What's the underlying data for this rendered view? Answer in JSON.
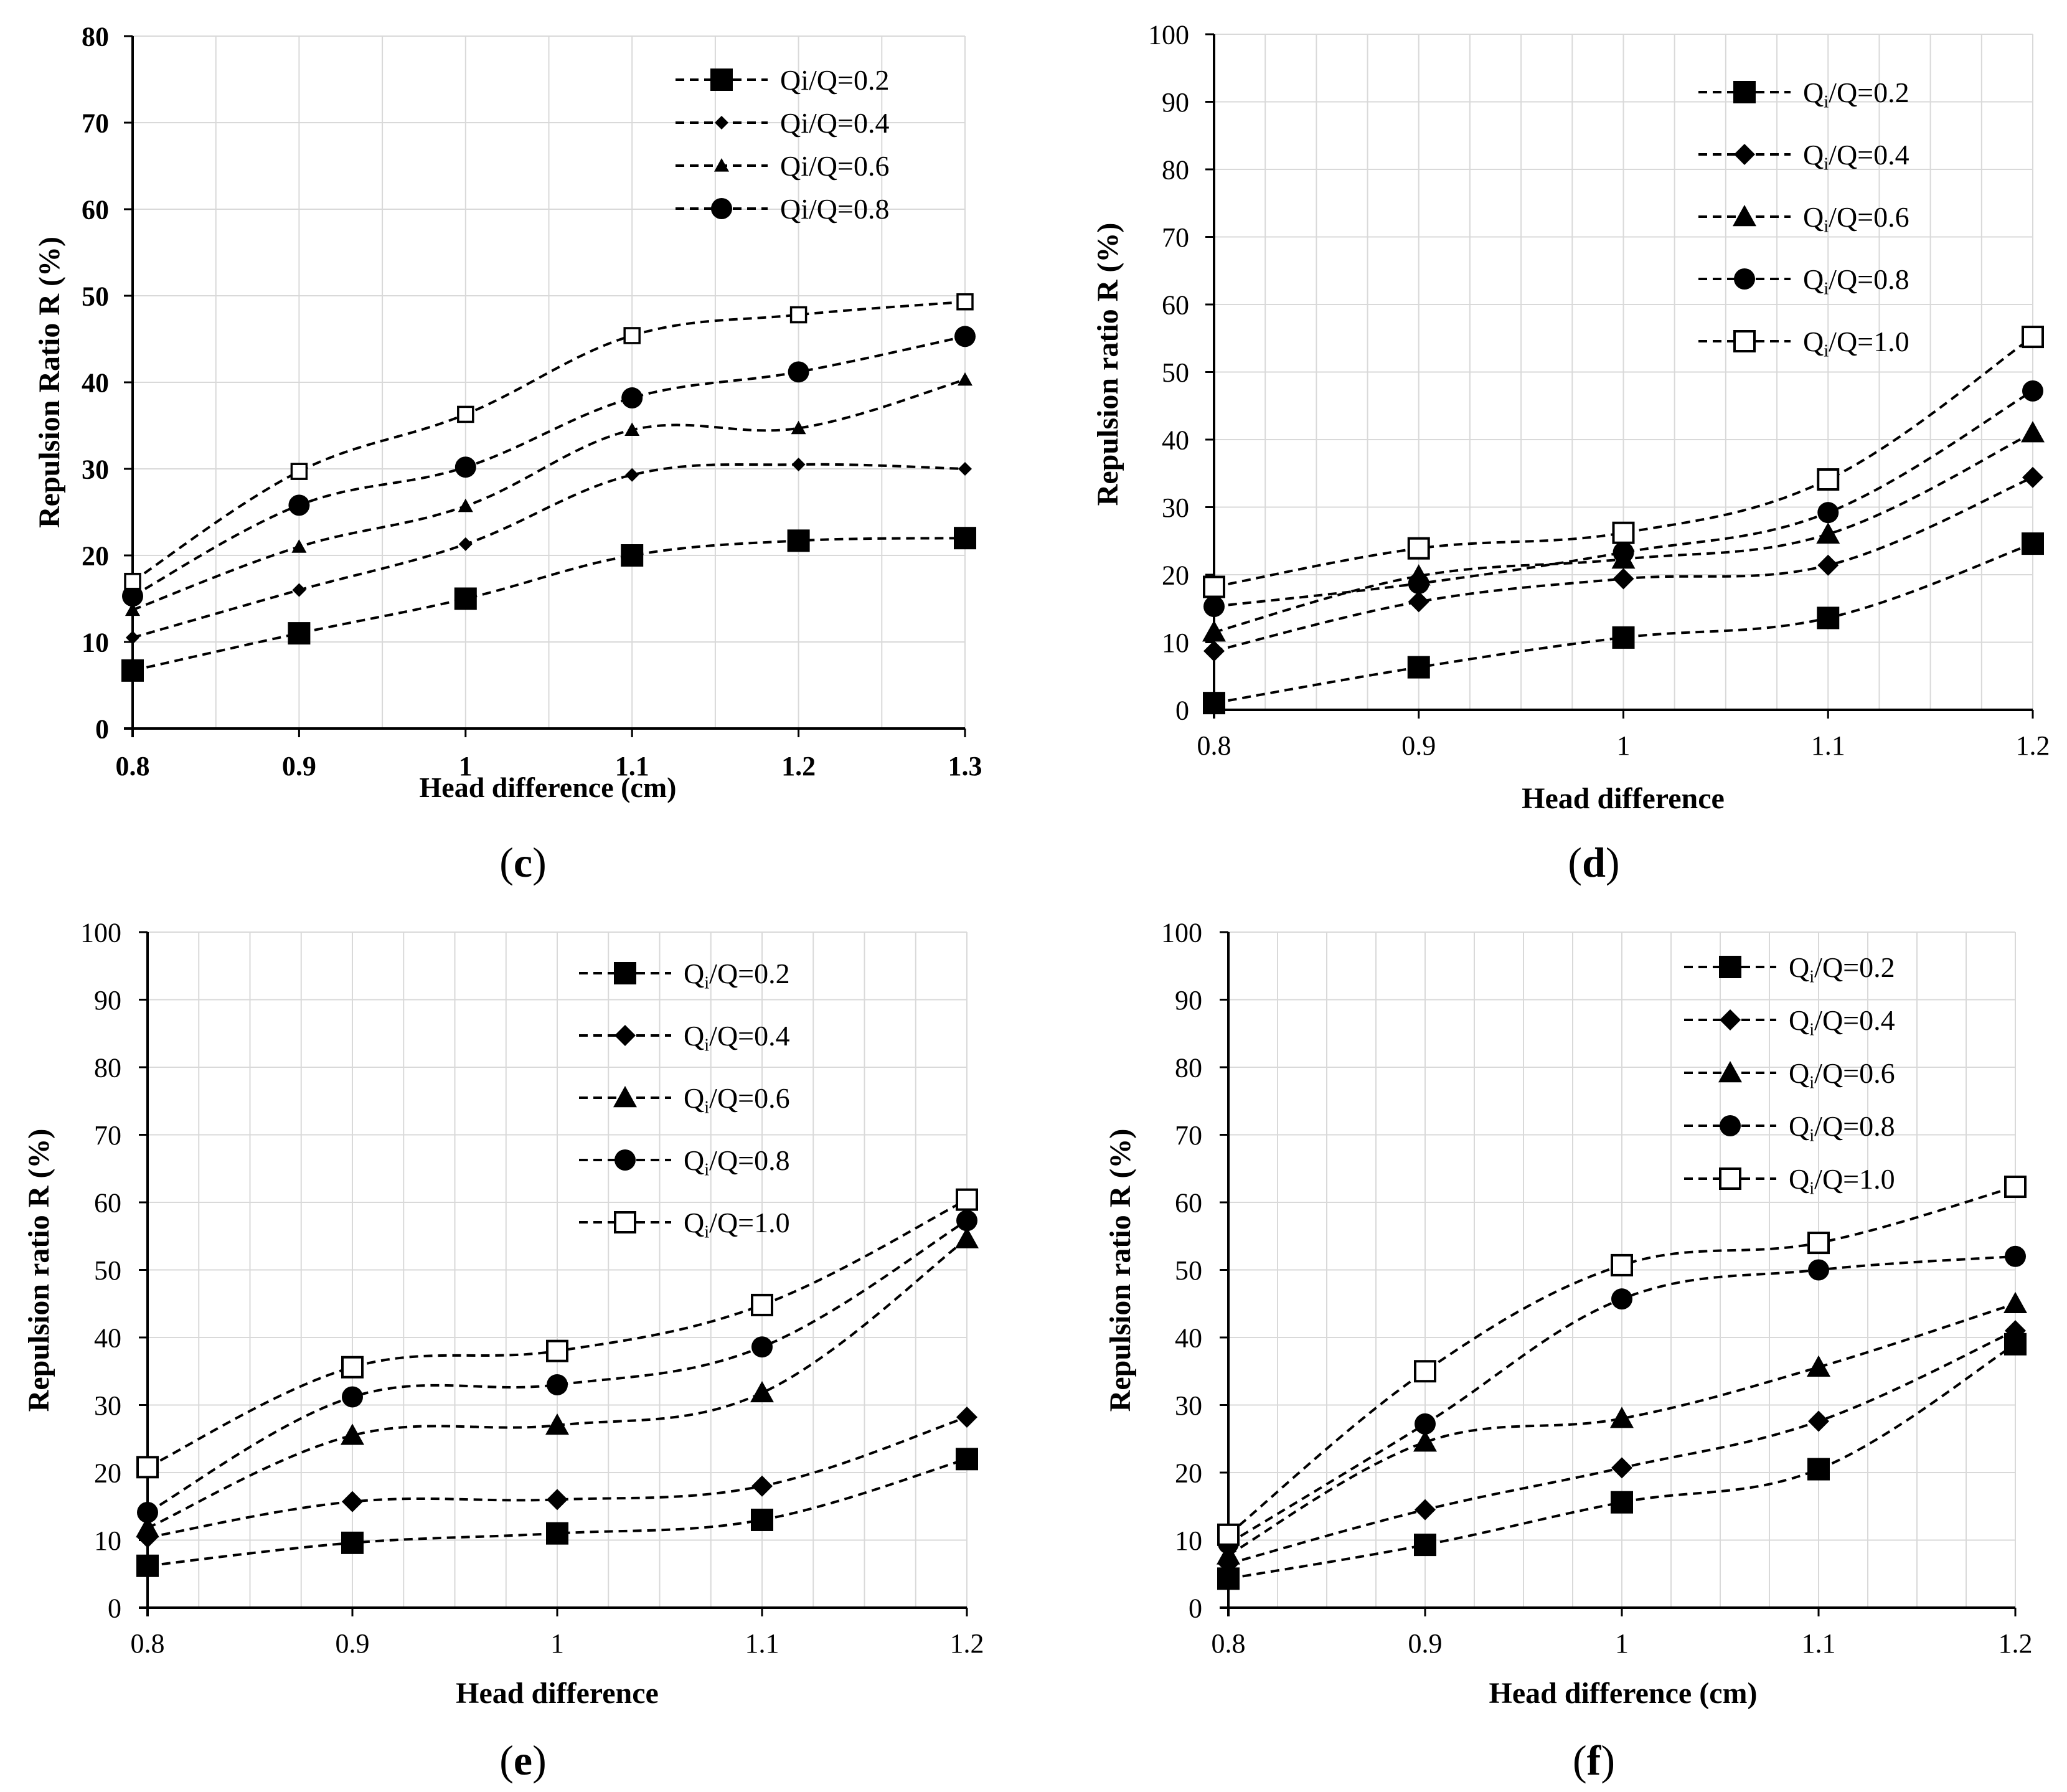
{
  "colors": {
    "line": "#000000",
    "grid": "#d9d9d9",
    "axis": "#000000",
    "background": "#ffffff"
  },
  "chart_data": [
    {
      "type": "line",
      "panel_label": "c",
      "title": "",
      "xlabel": "Head difference (cm)",
      "ylabel": "Repulsion Ratio R (%)",
      "categories": [
        "0.8",
        "0.9",
        "1",
        "1.1",
        "1.2",
        "1.3"
      ],
      "x": [
        0.8,
        0.9,
        1.0,
        1.1,
        1.2,
        1.3
      ],
      "xlim": [
        0.8,
        1.3
      ],
      "ylim": [
        0,
        80
      ],
      "yticks": [
        "0",
        "10",
        "20",
        "30",
        "40",
        "50",
        "60",
        "70",
        "80"
      ],
      "grid": true,
      "legend_position": "top-right",
      "series": [
        {
          "name": "Qi/Q=0.2",
          "marker": "square",
          "values": [
            6.7,
            11,
            15,
            20,
            21.7,
            22
          ]
        },
        {
          "name": "Qi/Q=0.4",
          "marker": "diamond-small",
          "values": [
            10.5,
            16,
            21.3,
            29.3,
            30.5,
            30
          ]
        },
        {
          "name": "Qi/Q=0.6",
          "marker": "triangle-small",
          "values": [
            13.7,
            21,
            25.7,
            34.5,
            34.7,
            40.3
          ]
        },
        {
          "name": "Qi/Q=0.8",
          "marker": "circle",
          "values": [
            15.3,
            25.8,
            30.2,
            38.2,
            41.2,
            45.3
          ]
        },
        {
          "name": "",
          "marker": "open-square-small",
          "values": [
            17,
            29.7,
            36.3,
            45.4,
            47.8,
            49.3
          ]
        }
      ]
    },
    {
      "type": "line",
      "panel_label": "d",
      "title": "",
      "xlabel": "Head difference",
      "ylabel": "Repulsion ratio R (%)",
      "categories": [
        "0.8",
        "0.9",
        "1",
        "1.1",
        "1.2"
      ],
      "x": [
        0.8,
        0.9,
        1.0,
        1.1,
        1.2
      ],
      "xlim": [
        0.8,
        1.2
      ],
      "ylim": [
        0,
        100
      ],
      "yticks": [
        "0",
        "10",
        "20",
        "30",
        "40",
        "50",
        "60",
        "70",
        "80",
        "90",
        "100"
      ],
      "grid": true,
      "legend_position": "top-right",
      "series": [
        {
          "name": "Qi/Q=0.2",
          "marker": "square",
          "values": [
            1,
            6.3,
            10.7,
            13.6,
            24.6
          ]
        },
        {
          "name": "Qi/Q=0.4",
          "marker": "diamond",
          "values": [
            8.7,
            16,
            19.4,
            21.4,
            34.4
          ]
        },
        {
          "name": "Qi/Q=0.6",
          "marker": "triangle",
          "values": [
            11.5,
            19.8,
            22.3,
            26,
            41
          ]
        },
        {
          "name": "Qi/Q=0.8",
          "marker": "circle",
          "values": [
            15.3,
            18.7,
            23.3,
            29.2,
            47.2
          ]
        },
        {
          "name": "Qi/Q=1.0",
          "marker": "open-square",
          "values": [
            18.2,
            23.9,
            26.2,
            34.1,
            55.2
          ]
        }
      ]
    },
    {
      "type": "line",
      "panel_label": "e",
      "title": "",
      "xlabel": "Head difference",
      "ylabel": "Repulsion ratio R (%)",
      "categories": [
        "0.8",
        "0.9",
        "1",
        "1.1",
        "1.2"
      ],
      "x": [
        0.8,
        0.9,
        1.0,
        1.1,
        1.2
      ],
      "xlim": [
        0.8,
        1.2
      ],
      "ylim": [
        0,
        100
      ],
      "yticks": [
        "0",
        "10",
        "20",
        "30",
        "40",
        "50",
        "60",
        "70",
        "80",
        "90",
        "100"
      ],
      "grid": true,
      "legend_position": "top-right",
      "series": [
        {
          "name": "Qi/Q=0.2",
          "marker": "square",
          "values": [
            6.2,
            9.6,
            11,
            13,
            22
          ]
        },
        {
          "name": "Qi/Q=0.4",
          "marker": "diamond",
          "values": [
            10.4,
            15.7,
            16,
            18,
            28.2
          ]
        },
        {
          "name": "Qi/Q=0.6",
          "marker": "triangle",
          "values": [
            11.8,
            25.5,
            27,
            31.8,
            54.6
          ]
        },
        {
          "name": "Qi/Q=0.8",
          "marker": "circle",
          "values": [
            14.1,
            31.2,
            33,
            38.6,
            57.3
          ]
        },
        {
          "name": "Qi/Q=1.0",
          "marker": "open-square",
          "values": [
            20.8,
            35.6,
            38,
            44.8,
            60.4
          ]
        }
      ]
    },
    {
      "type": "line",
      "panel_label": "f",
      "title": "",
      "xlabel": "Head difference (cm)",
      "ylabel": "Repulsion ratio R (%)",
      "categories": [
        "0.8",
        "0.9",
        "1",
        "1.1",
        "1.2"
      ],
      "x": [
        0.8,
        0.9,
        1.0,
        1.1,
        1.2
      ],
      "xlim": [
        0.8,
        1.2
      ],
      "ylim": [
        0,
        100
      ],
      "yticks": [
        "0",
        "10",
        "20",
        "30",
        "40",
        "50",
        "60",
        "70",
        "80",
        "90",
        "100"
      ],
      "grid": true,
      "legend_position": "top-right",
      "series": [
        {
          "name": "Qi/Q=0.2",
          "marker": "square",
          "values": [
            4.3,
            9.3,
            15.6,
            20.5,
            39
          ]
        },
        {
          "name": "Qi/Q=0.4",
          "marker": "diamond",
          "values": [
            6.5,
            14.5,
            20.7,
            27.6,
            41
          ]
        },
        {
          "name": "Qi/Q=0.6",
          "marker": "triangle",
          "values": [
            7.8,
            24.5,
            28,
            35.6,
            45
          ]
        },
        {
          "name": "Qi/Q=0.8",
          "marker": "circle",
          "values": [
            9.5,
            27.2,
            45.7,
            50,
            52
          ]
        },
        {
          "name": "Qi/Q=1.0",
          "marker": "open-square",
          "values": [
            10.8,
            35,
            50.7,
            54,
            62.3
          ]
        }
      ]
    }
  ]
}
